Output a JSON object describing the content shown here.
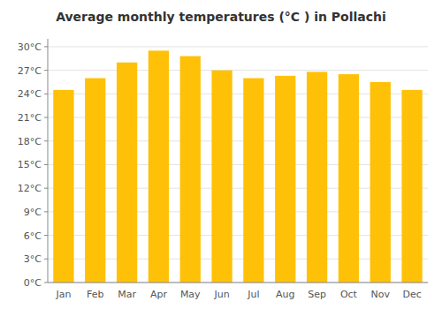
{
  "chart_data": {
    "type": "bar",
    "title": "Average monthly temperatures (°C ) in Pollachi",
    "categories": [
      "Jan",
      "Feb",
      "Mar",
      "Apr",
      "May",
      "Jun",
      "Jul",
      "Aug",
      "Sep",
      "Oct",
      "Nov",
      "Dec"
    ],
    "values": [
      24.5,
      26.0,
      28.0,
      29.5,
      28.8,
      27.0,
      26.0,
      26.3,
      26.8,
      26.5,
      25.5,
      24.5
    ],
    "color": "#FFC107",
    "ylim": [
      0,
      31
    ],
    "yticks": [
      {
        "value": 0,
        "label": "0°C"
      },
      {
        "value": 3,
        "label": "3°C"
      },
      {
        "value": 6,
        "label": "6°C"
      },
      {
        "value": 9,
        "label": "9°C"
      },
      {
        "value": 12,
        "label": "12°C"
      },
      {
        "value": 15,
        "label": "15°C"
      },
      {
        "value": 18,
        "label": "18°C"
      },
      {
        "value": 21,
        "label": "21°C"
      },
      {
        "value": 24,
        "label": "24°C"
      },
      {
        "value": 27,
        "label": "27°C"
      },
      {
        "value": 30,
        "label": "30°C"
      }
    ],
    "grid": true
  }
}
